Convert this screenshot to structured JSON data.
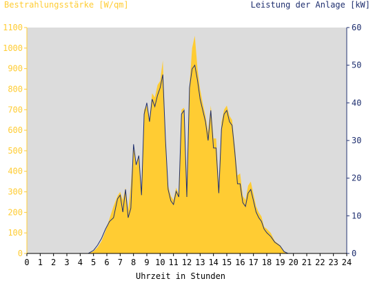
{
  "header": {
    "left_title": "Bestrahlungsstärke [W/qm]",
    "right_title": "Leistung der Anlage [kW]"
  },
  "colors": {
    "background": "#ffffff",
    "plot_bg": "#dcdcdc",
    "left_axis": "#ffcc33",
    "right_axis": "#1f2f6f",
    "area_fill": "#ffcc33",
    "power_line": "#1f2f6f",
    "bottom_axis_text": "#000000"
  },
  "chart_data": {
    "type": "area",
    "xlabel": "Uhrzeit in Stunden",
    "xlim": [
      0,
      24
    ],
    "x_ticks": [
      "0",
      "1",
      "2",
      "3",
      "4",
      "5",
      "6",
      "7",
      "8",
      "9",
      "10",
      "11",
      "12",
      "13",
      "14",
      "15",
      "16",
      "17",
      "18",
      "19",
      "20",
      "21",
      "22",
      "23",
      "24"
    ],
    "y_left": {
      "label": "Bestrahlungsstärke [W/qm]",
      "lim": [
        0,
        1100
      ],
      "ticks": [
        "0",
        "100",
        "200",
        "300",
        "400",
        "500",
        "600",
        "700",
        "800",
        "900",
        "1000",
        "1100"
      ]
    },
    "y_right": {
      "label": "Leistung der Anlage [kW]",
      "lim": [
        0,
        60
      ],
      "ticks": [
        "0",
        "10",
        "20",
        "30",
        "40",
        "50",
        "60"
      ]
    },
    "grid": false,
    "series": [
      {
        "name": "Bestrahlungsstärke [W/qm]",
        "axis": "left",
        "type": "area",
        "x": [
          0,
          4.6,
          5,
          5.3,
          5.6,
          5.9,
          6.2,
          6.5,
          6.8,
          7.0,
          7.2,
          7.4,
          7.6,
          7.8,
          8.0,
          8.2,
          8.4,
          8.6,
          8.8,
          9.0,
          9.2,
          9.4,
          9.6,
          9.8,
          10.0,
          10.2,
          10.4,
          10.6,
          10.8,
          11.0,
          11.2,
          11.4,
          11.6,
          11.8,
          12.0,
          12.2,
          12.4,
          12.6,
          12.8,
          13.0,
          13.2,
          13.4,
          13.6,
          13.8,
          14.0,
          14.2,
          14.4,
          14.6,
          14.8,
          15.0,
          15.2,
          15.4,
          15.6,
          15.8,
          16.0,
          16.2,
          16.4,
          16.6,
          16.8,
          17.0,
          17.2,
          17.4,
          17.6,
          17.8,
          18.0,
          18.3,
          18.6,
          19.0,
          19.3,
          19.6,
          19.9,
          20.1,
          20.3,
          24
        ],
        "y": [
          0,
          0,
          10,
          30,
          60,
          110,
          170,
          230,
          280,
          300,
          260,
          320,
          210,
          330,
          520,
          420,
          480,
          300,
          700,
          720,
          650,
          780,
          760,
          820,
          840,
          940,
          560,
          330,
          280,
          260,
          320,
          290,
          700,
          710,
          320,
          820,
          1000,
          1060,
          900,
          800,
          730,
          670,
          590,
          720,
          560,
          560,
          330,
          640,
          700,
          720,
          670,
          650,
          520,
          380,
          390,
          280,
          260,
          330,
          350,
          290,
          230,
          200,
          180,
          130,
          120,
          100,
          60,
          40,
          10,
          0,
          0,
          0,
          0,
          0
        ]
      },
      {
        "name": "Leistung der Anlage [kW]",
        "axis": "right",
        "type": "line",
        "x": [
          0,
          4.6,
          5,
          5.3,
          5.6,
          5.9,
          6.2,
          6.5,
          6.8,
          7.0,
          7.2,
          7.4,
          7.6,
          7.8,
          8.0,
          8.2,
          8.4,
          8.6,
          8.8,
          9.0,
          9.2,
          9.4,
          9.6,
          9.8,
          10.0,
          10.2,
          10.4,
          10.6,
          10.8,
          11.0,
          11.2,
          11.4,
          11.6,
          11.8,
          12.0,
          12.2,
          12.4,
          12.6,
          12.8,
          13.0,
          13.2,
          13.4,
          13.6,
          13.8,
          14.0,
          14.2,
          14.4,
          14.6,
          14.8,
          15.0,
          15.2,
          15.4,
          15.6,
          15.8,
          16.0,
          16.2,
          16.4,
          16.6,
          16.8,
          17.0,
          17.2,
          17.4,
          17.6,
          17.8,
          18.0,
          18.3,
          18.6,
          19.0,
          19.3,
          19.6,
          19.9,
          20.1,
          20.3,
          24
        ],
        "y": [
          0,
          0,
          0.8,
          2.2,
          4,
          6.5,
          8.5,
          9.5,
          14.5,
          15.5,
          11,
          17,
          9.5,
          12,
          29,
          23.5,
          26,
          15.5,
          37,
          40,
          35,
          41,
          39,
          42,
          44,
          47.5,
          30,
          17,
          14,
          13,
          16.5,
          15,
          37,
          38,
          15,
          44,
          49,
          50,
          46,
          41,
          38,
          35,
          30,
          38,
          28,
          28,
          16,
          33,
          37,
          38,
          35,
          34,
          27,
          18.5,
          18.5,
          13.5,
          12.5,
          16,
          17,
          14,
          11,
          9.5,
          8.5,
          6.5,
          5.5,
          4.5,
          3,
          2,
          0.5,
          0,
          0,
          0,
          0,
          0
        ]
      }
    ]
  }
}
